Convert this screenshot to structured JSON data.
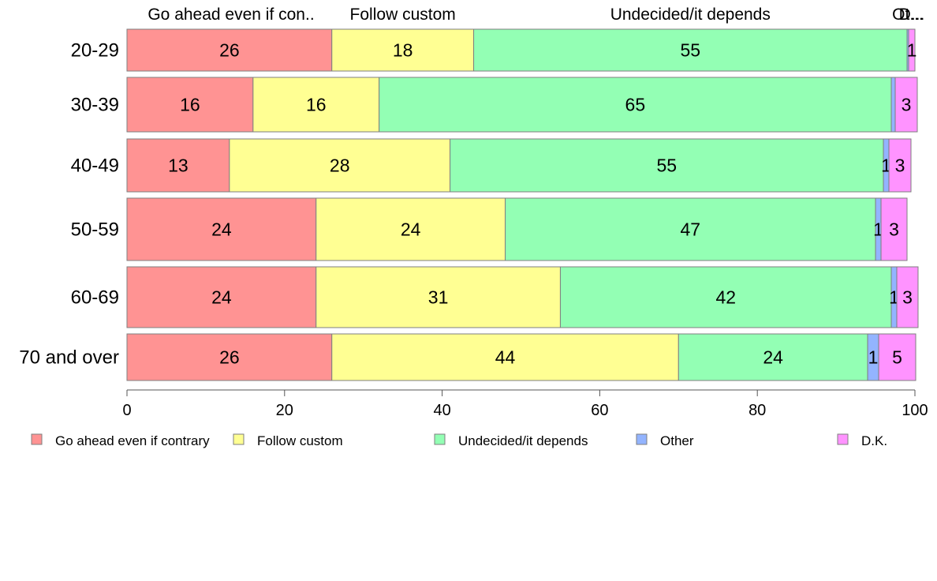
{
  "chart_data": {
    "type": "bar",
    "orientation": "horizontal",
    "stacked": true,
    "categories": [
      "20-29",
      "30-39",
      "40-49",
      "50-59",
      "60-69",
      "70 and over"
    ],
    "series": [
      {
        "name": "Go ahead even if contrary",
        "top_label": "Go ahead even if con..",
        "color": "#ff9393",
        "values": [
          26,
          16,
          13,
          24,
          24,
          26
        ]
      },
      {
        "name": "Follow custom",
        "top_label": "Follow custom",
        "color": "#ffff93",
        "values": [
          18,
          16,
          28,
          24,
          31,
          44
        ]
      },
      {
        "name": "Undecided/it depends",
        "top_label": "Undecided/it depends",
        "color": "#93ffb4",
        "values": [
          55,
          65,
          55,
          47,
          42,
          24
        ]
      },
      {
        "name": "Other",
        "top_label": "Ot...",
        "color": "#93b4ff",
        "values": [
          0.2,
          0.5,
          0.7,
          0.7,
          0.7,
          1.4
        ]
      },
      {
        "name": "D.K.",
        "top_label": "D...",
        "color": "#ff93ff",
        "values": [
          0.8,
          2.8,
          2.8,
          3.3,
          2.7,
          4.7
        ]
      }
    ],
    "data_labels": [
      [
        "26",
        "18",
        "55",
        "",
        "1"
      ],
      [
        "16",
        "16",
        "65",
        "",
        "3"
      ],
      [
        "13",
        "28",
        "55",
        "1",
        "3"
      ],
      [
        "24",
        "24",
        "47",
        "1",
        "3"
      ],
      [
        "24",
        "31",
        "42",
        "1",
        "3"
      ],
      [
        "26",
        "44",
        "24",
        "1",
        "5"
      ]
    ],
    "xlim": [
      0,
      100
    ],
    "xticks": [
      "0",
      "20",
      "40",
      "60",
      "80",
      "100"
    ],
    "xlabel": "",
    "ylabel": "",
    "title": "",
    "grid": false,
    "legend_position": "bottom"
  }
}
